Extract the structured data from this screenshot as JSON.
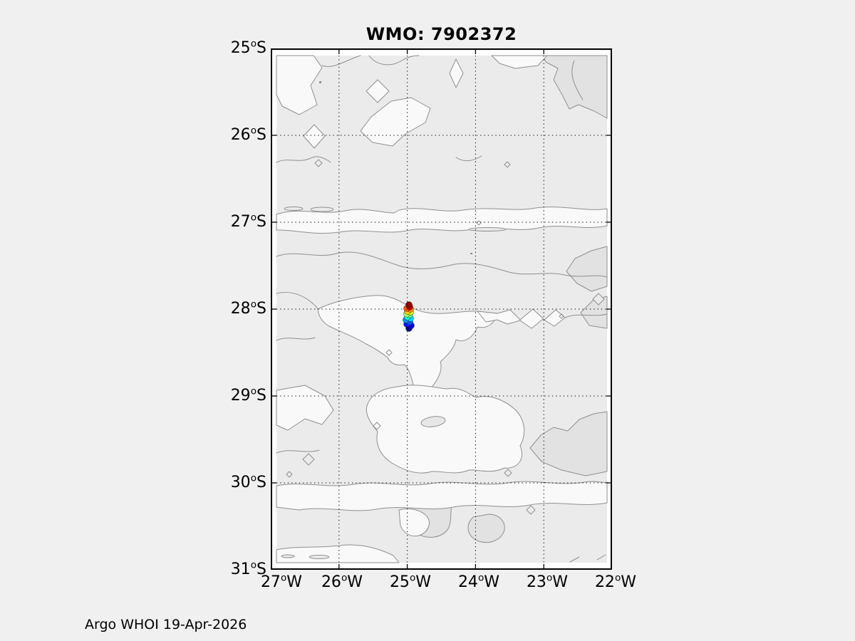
{
  "figure": {
    "title": "WMO: 7902372",
    "footer": "Argo WHOI 19-Apr-2026",
    "background_color": "#f0f0f0",
    "degree_symbol": "o"
  },
  "axes": {
    "x_ticks": [
      {
        "deg": "27",
        "hemi": "W"
      },
      {
        "deg": "26",
        "hemi": "W"
      },
      {
        "deg": "25",
        "hemi": "W"
      },
      {
        "deg": "24",
        "hemi": "W"
      },
      {
        "deg": "23",
        "hemi": "W"
      },
      {
        "deg": "22",
        "hemi": "W"
      }
    ],
    "y_ticks": [
      {
        "deg": "25",
        "hemi": "S"
      },
      {
        "deg": "26",
        "hemi": "S"
      },
      {
        "deg": "27",
        "hemi": "S"
      },
      {
        "deg": "28",
        "hemi": "S"
      },
      {
        "deg": "29",
        "hemi": "S"
      },
      {
        "deg": "30",
        "hemi": "S"
      },
      {
        "deg": "31",
        "hemi": "S"
      }
    ],
    "grid_style": "dotted"
  },
  "chart_data": {
    "type": "scatter",
    "title": "WMO: 7902372",
    "xlabel": "",
    "ylabel": "",
    "xlim": [
      -27,
      -22
    ],
    "ylim": [
      -31,
      -25
    ],
    "x_tick_labels": [
      "27°W",
      "26°W",
      "25°W",
      "24°W",
      "23°W",
      "22°W"
    ],
    "y_tick_labels": [
      "25°S",
      "26°S",
      "27°S",
      "28°S",
      "29°S",
      "30°S",
      "31°S"
    ],
    "grid": "dotted graticule at 1-degree spacing",
    "annotation": "Argo WHOI 19-Apr-2026",
    "background_layer": "light-gray bathymetry contour field",
    "series": [
      {
        "name": "argo-float-7902372-profile-positions",
        "marker": "filled-circle",
        "marker_radius_px": 4.5,
        "colormap": "jet (blue = earliest, red = latest)",
        "points": [
          {
            "lon": -24.975,
            "lat": -28.221,
            "color": "#00008F"
          },
          {
            "lon": -24.944,
            "lat": -28.189,
            "color": "#0000D1"
          },
          {
            "lon": -25.006,
            "lat": -28.172,
            "color": "#0012FF"
          },
          {
            "lon": -24.965,
            "lat": -28.148,
            "color": "#0054FF"
          },
          {
            "lon": -25.017,
            "lat": -28.123,
            "color": "#0096FF"
          },
          {
            "lon": -24.954,
            "lat": -28.107,
            "color": "#00D8FF"
          },
          {
            "lon": -24.996,
            "lat": -28.09,
            "color": "#1CFFE2"
          },
          {
            "lon": -24.965,
            "lat": -28.066,
            "color": "#5EFFA0"
          },
          {
            "lon": -25.006,
            "lat": -28.057,
            "color": "#A0FF5E"
          },
          {
            "lon": -24.954,
            "lat": -28.033,
            "color": "#E2FF1C"
          },
          {
            "lon": -24.996,
            "lat": -28.025,
            "color": "#FFD800"
          },
          {
            "lon": -24.954,
            "lat": -28.0,
            "color": "#FF9600"
          },
          {
            "lon": -25.006,
            "lat": -27.992,
            "color": "#FF5400"
          },
          {
            "lon": -24.965,
            "lat": -27.975,
            "color": "#D10000"
          },
          {
            "lon": -24.975,
            "lat": -27.951,
            "color": "#8F0000"
          }
        ]
      }
    ]
  }
}
